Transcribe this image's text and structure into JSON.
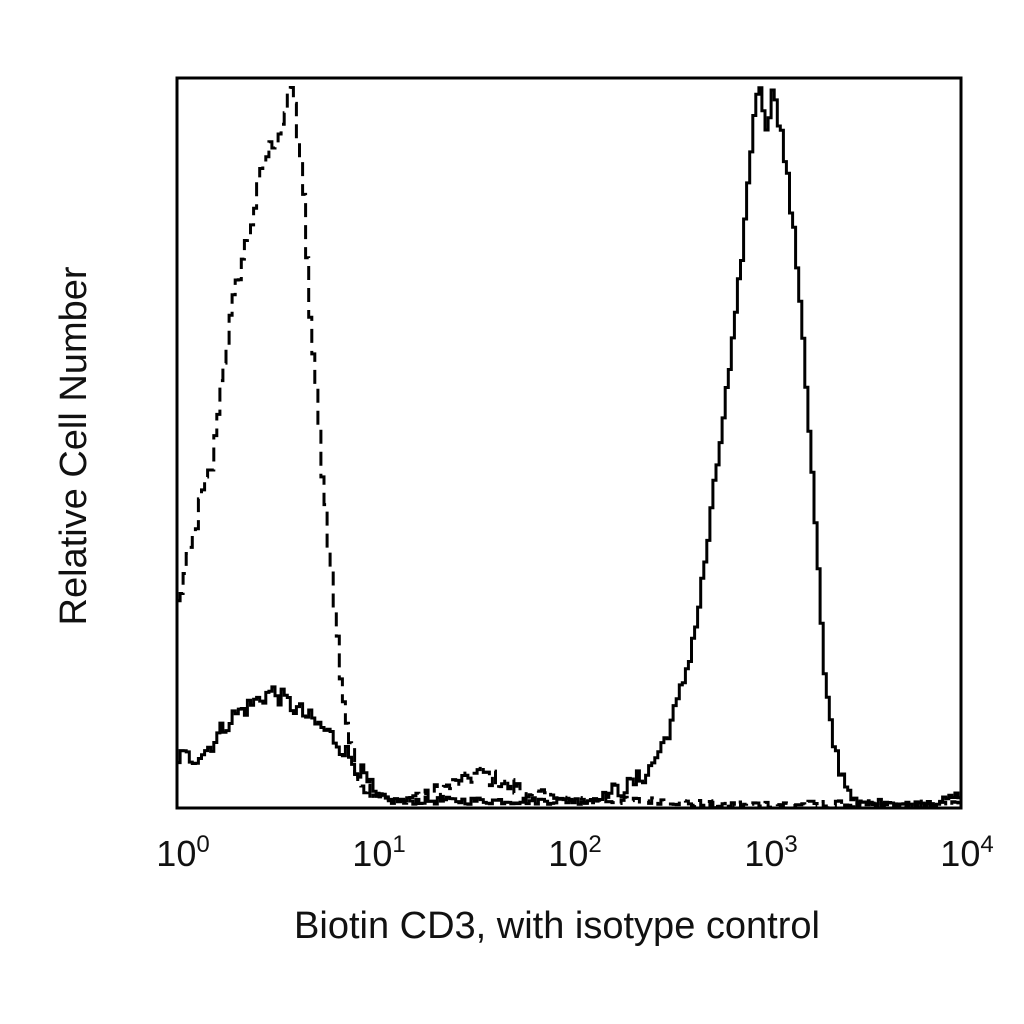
{
  "chart_data": {
    "type": "line",
    "title": "",
    "xlabel": "Biotin CD3, with isotype control",
    "ylabel": "Relative Cell Number",
    "xscale": "log",
    "xlim": [
      1,
      10000
    ],
    "ylim": [
      0,
      100
    ],
    "grid": false,
    "legend": "none",
    "x_ticks": [
      {
        "base": "10",
        "exp": "0",
        "value": 1
      },
      {
        "base": "10",
        "exp": "1",
        "value": 10
      },
      {
        "base": "10",
        "exp": "2",
        "value": 100
      },
      {
        "base": "10",
        "exp": "3",
        "value": 1000
      },
      {
        "base": "10",
        "exp": "4",
        "value": 10000
      }
    ],
    "series": [
      {
        "style": "dashed",
        "color": "#000000",
        "x": [
          1.0,
          1.1,
          1.2,
          1.3,
          1.4,
          1.5,
          1.6,
          1.7,
          1.8,
          1.9,
          2.0,
          2.2,
          2.4,
          2.6,
          2.8,
          3.0,
          3.2,
          3.4,
          3.6,
          3.8,
          4.0,
          4.3,
          4.6,
          5.0,
          5.4,
          5.8,
          6.3,
          6.8,
          7.4,
          8.0,
          9.0,
          10.0,
          12,
          14,
          17,
          20,
          25,
          30,
          35,
          40,
          50,
          60,
          80,
          100,
          130,
          160,
          200,
          300,
          500,
          1000,
          2000,
          5000,
          10000
        ],
        "y": [
          28,
          33,
          37,
          42,
          45,
          47,
          55,
          61,
          65,
          69,
          72,
          77,
          81,
          86,
          89,
          91,
          92,
          94,
          96,
          99,
          94,
          87,
          71,
          58,
          47,
          37,
          27,
          17,
          10,
          5,
          3,
          2,
          1,
          1,
          2,
          2,
          3,
          4,
          5,
          4,
          3,
          2,
          2,
          1,
          1,
          1,
          1,
          1,
          0.5,
          0.5,
          0.5,
          0.5,
          0.5
        ]
      },
      {
        "style": "solid",
        "color": "#000000",
        "x": [
          1.0,
          1.2,
          1.4,
          1.6,
          1.8,
          2.0,
          2.3,
          2.6,
          3.0,
          3.4,
          3.8,
          4.3,
          4.8,
          5.4,
          6.0,
          7.0,
          8.0,
          9.0,
          10,
          12,
          15,
          20,
          30,
          50,
          80,
          120,
          160,
          200,
          250,
          300,
          350,
          400,
          450,
          500,
          550,
          600,
          650,
          700,
          750,
          800,
          850,
          900,
          950,
          1000,
          1050,
          1100,
          1150,
          1200,
          1300,
          1400,
          1500,
          1600,
          1700,
          1800,
          1900,
          2000,
          2200,
          2400,
          2600,
          2800,
          3000,
          3300,
          3600,
          4000,
          5000,
          6000,
          8000,
          10000
        ],
        "y": [
          7,
          7,
          8,
          10,
          12,
          13,
          14,
          15,
          16,
          15,
          14,
          13,
          12,
          11,
          10,
          8,
          6,
          4,
          2,
          1,
          1,
          1,
          1,
          1,
          1,
          1,
          2,
          3,
          5,
          9,
          14,
          20,
          27,
          36,
          45,
          53,
          60,
          67,
          76,
          84,
          93,
          99,
          97,
          94,
          96,
          99,
          95,
          92,
          85,
          77,
          69,
          58,
          47,
          37,
          26,
          16,
          9,
          5,
          3,
          1,
          0.5,
          0.5,
          0.5,
          1,
          0.5,
          0.5,
          1,
          2
        ]
      }
    ]
  }
}
